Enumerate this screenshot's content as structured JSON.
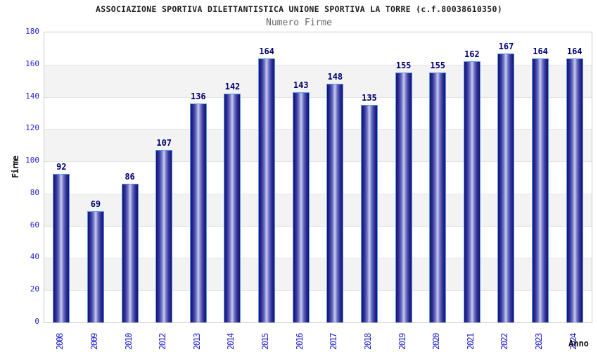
{
  "header": {
    "title": "ASSOCIAZIONE SPORTIVA DILETTANTISTICA UNIONE SPORTIVA LA TORRE (c.f.80038610350)",
    "subtitle": "Numero Firme"
  },
  "chart_data": {
    "type": "bar",
    "title": "ASSOCIAZIONE SPORTIVA DILETTANTISTICA UNIONE SPORTIVA LA TORRE (c.f.80038610350)",
    "subtitle": "Numero Firme",
    "xlabel": "Anno",
    "ylabel": "Firme",
    "categories": [
      "2008",
      "2009",
      "2010",
      "2012",
      "2013",
      "2014",
      "2015",
      "2016",
      "2017",
      "2018",
      "2019",
      "2020",
      "2021",
      "2022",
      "2023",
      "2024"
    ],
    "values": [
      92,
      69,
      86,
      107,
      136,
      142,
      164,
      143,
      148,
      135,
      155,
      155,
      162,
      167,
      164,
      164
    ],
    "ylim": [
      0,
      180
    ],
    "ytick_step": 20,
    "yticks": [
      0,
      20,
      40,
      60,
      80,
      100,
      120,
      140,
      160,
      180
    ],
    "grid": "horizontal gridlines with alternating shaded bands",
    "legend": "none",
    "colors": {
      "tick_label": "#2424d0",
      "value_label": "#000070",
      "title": "#1c1c1c",
      "subtitle": "#666666",
      "plot_border": "#c9c9c9",
      "gridline": "#e4e4e4",
      "band_shade": "#f3f3f3",
      "bar_border": "#5b98e8",
      "bar_dark": "#14136f",
      "bar_mid": "#31319b",
      "bar_light": "#c9cdee"
    }
  }
}
